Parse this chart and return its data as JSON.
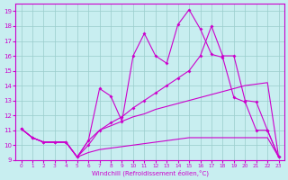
{
  "xlabel": "Windchill (Refroidissement éolien,°C)",
  "bg_color": "#c8eef0",
  "line_color": "#cc00cc",
  "grid_color": "#99cccc",
  "xlim": [
    -0.5,
    23.5
  ],
  "ylim": [
    9,
    19.5
  ],
  "xticks": [
    0,
    1,
    2,
    3,
    4,
    5,
    6,
    7,
    8,
    9,
    10,
    11,
    12,
    13,
    14,
    15,
    16,
    17,
    18,
    19,
    20,
    21,
    22,
    23
  ],
  "yticks": [
    9,
    10,
    11,
    12,
    13,
    14,
    15,
    16,
    17,
    18,
    19
  ],
  "line_jagged_x": [
    0,
    1,
    2,
    3,
    4,
    5,
    6,
    7,
    8,
    9,
    10,
    11,
    12,
    13,
    14,
    15,
    16,
    17,
    18,
    19,
    20,
    21,
    22,
    23
  ],
  "line_jagged_y": [
    11.1,
    10.5,
    10.2,
    10.2,
    10.2,
    9.2,
    10.3,
    13.8,
    13.3,
    11.6,
    16.0,
    17.5,
    16.0,
    15.5,
    18.1,
    19.1,
    17.8,
    16.1,
    15.9,
    13.2,
    12.9,
    11.0,
    11.0,
    9.2
  ],
  "line_smooth_x": [
    0,
    1,
    2,
    3,
    4,
    5,
    6,
    7,
    8,
    9,
    10,
    11,
    12,
    13,
    14,
    15,
    16,
    17,
    18,
    19,
    20,
    21,
    22,
    23
  ],
  "line_smooth_y": [
    11.1,
    10.5,
    10.2,
    10.2,
    10.2,
    9.2,
    10.0,
    11.0,
    11.5,
    11.9,
    12.5,
    13.0,
    13.5,
    14.0,
    14.5,
    15.0,
    16.0,
    18.0,
    16.0,
    16.0,
    13.0,
    12.9,
    11.0,
    9.2
  ],
  "line_upper_x": [
    0,
    1,
    2,
    3,
    4,
    5,
    6,
    7,
    8,
    9,
    10,
    11,
    12,
    13,
    14,
    15,
    16,
    17,
    18,
    19,
    20,
    21,
    22,
    23
  ],
  "line_upper_y": [
    11.1,
    10.5,
    10.2,
    10.2,
    10.2,
    9.2,
    10.3,
    11.0,
    11.3,
    11.6,
    11.9,
    12.1,
    12.4,
    12.6,
    12.8,
    13.0,
    13.2,
    13.4,
    13.6,
    13.8,
    14.0,
    14.1,
    14.2,
    9.2
  ],
  "line_lower_x": [
    0,
    1,
    2,
    3,
    4,
    5,
    6,
    7,
    8,
    9,
    10,
    11,
    12,
    13,
    14,
    15,
    16,
    17,
    18,
    19,
    20,
    21,
    22,
    23
  ],
  "line_lower_y": [
    11.1,
    10.5,
    10.2,
    10.2,
    10.2,
    9.2,
    9.5,
    9.7,
    9.8,
    9.9,
    10.0,
    10.1,
    10.2,
    10.3,
    10.4,
    10.5,
    10.5,
    10.5,
    10.5,
    10.5,
    10.5,
    10.5,
    10.5,
    9.2
  ]
}
